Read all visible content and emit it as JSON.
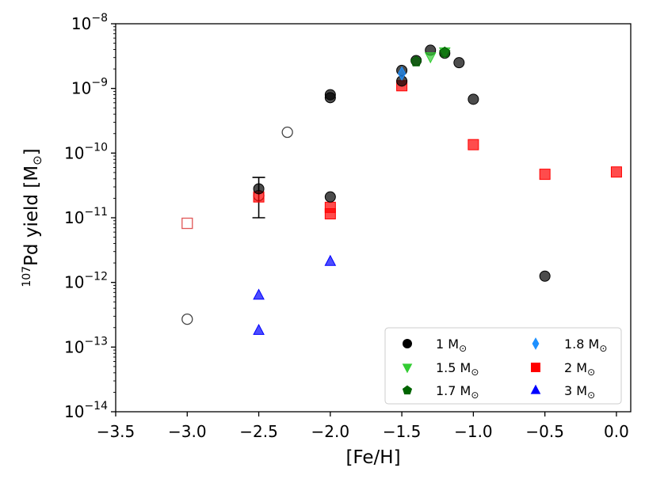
{
  "chart_data": {
    "type": "scatter",
    "xlabel": "[Fe/H]",
    "ylabel_iso": "107",
    "ylabel_main": "Pd yield [M",
    "ylabel_sub": "⊙",
    "ylabel_close": "]",
    "xscale": "linear",
    "yscale": "log",
    "xlim": [
      -3.5,
      0.1
    ],
    "ylim_exp": [
      -14,
      -8
    ],
    "x_ticks": [
      {
        "value": -3.5,
        "label": "−3.5"
      },
      {
        "value": -3.0,
        "label": "−3.0"
      },
      {
        "value": -2.5,
        "label": "−2.5"
      },
      {
        "value": -2.0,
        "label": "−2.0"
      },
      {
        "value": -1.5,
        "label": "−1.5"
      },
      {
        "value": -1.0,
        "label": "−1.0"
      },
      {
        "value": -0.5,
        "label": "−0.5"
      },
      {
        "value": 0.0,
        "label": "0.0"
      }
    ],
    "y_ticks": [
      {
        "exp": -8,
        "base": "10",
        "sup": "−8"
      },
      {
        "exp": -9,
        "base": "10",
        "sup": "−9"
      },
      {
        "exp": -10,
        "base": "10",
        "sup": "−10"
      },
      {
        "exp": -11,
        "base": "10",
        "sup": "−11"
      },
      {
        "exp": -12,
        "base": "10",
        "sup": "−12"
      },
      {
        "exp": -13,
        "base": "10",
        "sup": "−13"
      },
      {
        "exp": -14,
        "base": "10",
        "sup": "−14"
      }
    ],
    "legend_position": "lower-right",
    "series": [
      {
        "name": "1 M",
        "sub": "⊙",
        "marker": "circle",
        "color": "#000000",
        "points": [
          {
            "x": -2.5,
            "y": 2.8e-11
          },
          {
            "x": -2.0,
            "y": 8e-10
          },
          {
            "x": -2.0,
            "y": 7.2e-10
          },
          {
            "x": -2.0,
            "y": 2.1e-11
          },
          {
            "x": -1.5,
            "y": 1.9e-09
          },
          {
            "x": -1.5,
            "y": 1.3e-09
          },
          {
            "x": -1.4,
            "y": 2.7e-09
          },
          {
            "x": -1.3,
            "y": 3.9e-09
          },
          {
            "x": -1.2,
            "y": 3.5e-09
          },
          {
            "x": -1.1,
            "y": 2.5e-09
          },
          {
            "x": -1.0,
            "y": 6.8e-10
          },
          {
            "x": -0.5,
            "y": 1.25e-12
          }
        ]
      },
      {
        "name": "1.5 M",
        "sub": "⊙",
        "marker": "triangle-down",
        "color": "#33cc33",
        "points": [
          {
            "x": -1.3,
            "y": 3.1e-09
          },
          {
            "x": -1.2,
            "y": 3.7e-09
          }
        ]
      },
      {
        "name": "1.7 M",
        "sub": "⊙",
        "marker": "pentagon",
        "color": "#006400",
        "points": [
          {
            "x": -1.4,
            "y": 2.6e-09
          },
          {
            "x": -1.2,
            "y": 3.6e-09
          }
        ]
      },
      {
        "name": "1.8 M",
        "sub": "⊙",
        "marker": "thin-diamond",
        "color": "#1e90ff",
        "points": [
          {
            "x": -1.5,
            "y": 1.7e-09
          }
        ]
      },
      {
        "name": "2 M",
        "sub": "⊙",
        "marker": "square",
        "color": "#ff0000",
        "points": [
          {
            "x": -2.5,
            "y": 2.1e-11
          },
          {
            "x": -2.0,
            "y": 1.45e-11
          },
          {
            "x": -2.0,
            "y": 1.15e-11
          },
          {
            "x": -1.5,
            "y": 1.1e-09
          },
          {
            "x": -1.0,
            "y": 1.35e-10
          },
          {
            "x": -0.5,
            "y": 4.7e-11
          },
          {
            "x": 0.0,
            "y": 5.1e-11
          }
        ]
      },
      {
        "name": "3 M",
        "sub": "⊙",
        "marker": "triangle-up",
        "color": "#0000ff",
        "points": [
          {
            "x": -2.5,
            "y": 6.3e-13
          },
          {
            "x": -2.5,
            "y": 1.8e-13
          },
          {
            "x": -2.0,
            "y": 2.1e-12
          }
        ]
      }
    ],
    "open_markers": [
      {
        "marker": "circle",
        "color": "#444444",
        "x": -3.0,
        "y": 2.7e-13
      },
      {
        "marker": "circle",
        "color": "#444444",
        "x": -2.3,
        "y": 2.1e-10
      },
      {
        "marker": "circle",
        "color": "#444444",
        "x": -2.5,
        "y": 2.2e-11
      },
      {
        "marker": "square",
        "color": "#e05555",
        "x": -3.0,
        "y": 8.2e-12
      }
    ],
    "error_bars": [
      {
        "x": -2.5,
        "y": 2.2e-11,
        "low": 1e-11,
        "high": 4.2e-11
      }
    ]
  }
}
